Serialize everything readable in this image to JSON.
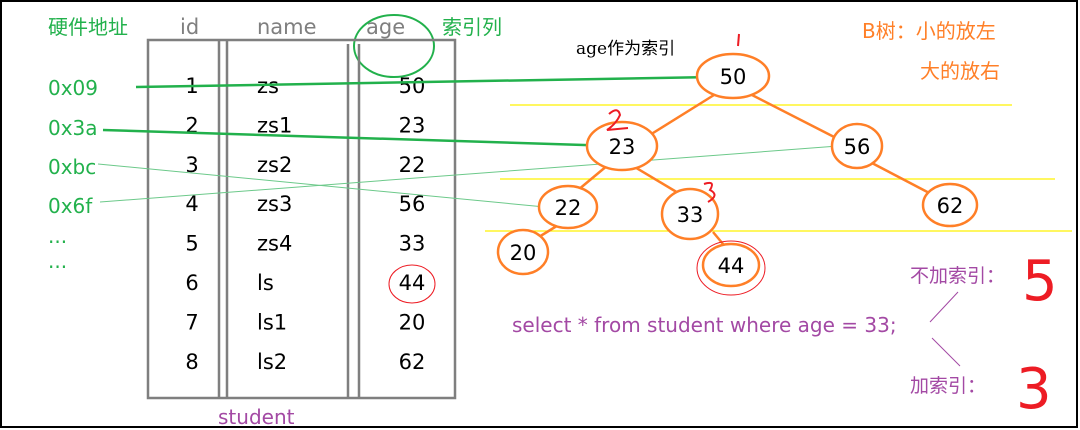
{
  "labels": {
    "address_header": "硬件地址",
    "index_column": "索引列",
    "tree_caption": "age作为索引",
    "btree_rule_1": "B树：小的放左",
    "btree_rule_2": "大的放右",
    "table_name": "student",
    "no_index": "不加索引：",
    "with_index": "加索引：",
    "query": "select * from student where age = 33;",
    "no_index_count": "5",
    "with_index_count": "3"
  },
  "table": {
    "columns": [
      "id",
      "name",
      "age"
    ],
    "rows": [
      [
        "1",
        "zs",
        "50"
      ],
      [
        "2",
        "zs1",
        "23"
      ],
      [
        "3",
        "zs2",
        "22"
      ],
      [
        "4",
        "zs3",
        "56"
      ],
      [
        "5",
        "zs4",
        "33"
      ],
      [
        "6",
        "ls",
        "44"
      ],
      [
        "7",
        "ls1",
        "20"
      ],
      [
        "8",
        "ls2",
        "62"
      ]
    ]
  },
  "addresses": [
    "0x09",
    "0x3a",
    "0xbc",
    "0x6f",
    "...",
    "..."
  ],
  "tree": {
    "nodes": [
      "50",
      "23",
      "56",
      "22",
      "33",
      "62",
      "20",
      "44"
    ],
    "step_marks": [
      "1",
      "2",
      "3"
    ]
  },
  "colors": {
    "green": "#22b14c",
    "orange": "#ff7f27",
    "red": "#ed1c24",
    "purple": "#a349a4",
    "yellow": "#fff200",
    "grid": "#7f7f7f"
  }
}
